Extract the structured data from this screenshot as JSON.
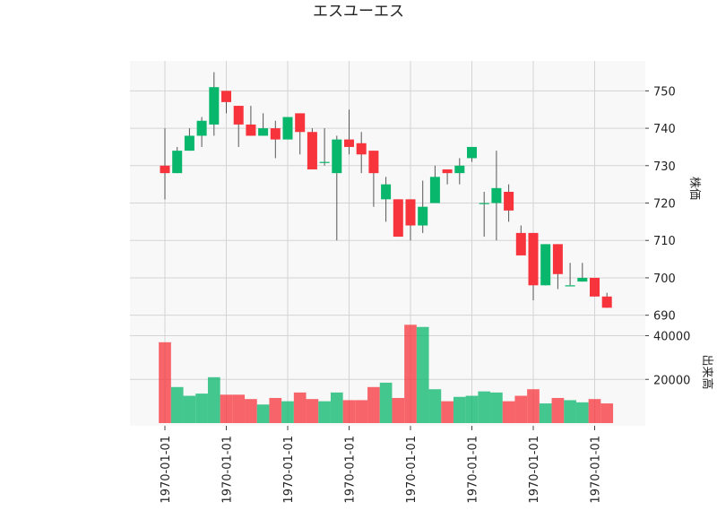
{
  "chart_data": {
    "type": "candlestick",
    "title": "エスユーエス",
    "ylabel_price": "株価",
    "ylabel_volume": "出来高",
    "up_color": "#08b76b",
    "down_color": "#f7343c",
    "wick_color": "#555555",
    "background": "#f8f8f8",
    "grid": true,
    "price_ylim": [
      688,
      758
    ],
    "price_ticks": [
      690,
      700,
      710,
      720,
      730,
      740,
      750
    ],
    "volume_ylim": [
      0,
      48000
    ],
    "volume_ticks": [
      20000,
      40000
    ],
    "x_tick_labels": [
      "1970-01-01",
      "1970-01-01",
      "1970-01-01",
      "1970-01-01",
      "1970-01-01",
      "1970-01-01",
      "1970-01-01",
      "1970-01-01"
    ],
    "x_tick_indices": [
      0,
      5,
      10,
      15,
      20,
      25,
      30,
      35
    ],
    "candles": [
      {
        "o": 730,
        "h": 740,
        "l": 721,
        "c": 728,
        "v": 37000
      },
      {
        "o": 728,
        "h": 735,
        "l": 728,
        "c": 734,
        "v": 16500
      },
      {
        "o": 734,
        "h": 740,
        "l": 734,
        "c": 738,
        "v": 12500
      },
      {
        "o": 738,
        "h": 743,
        "l": 735,
        "c": 742,
        "v": 13500
      },
      {
        "o": 741,
        "h": 755,
        "l": 738,
        "c": 751,
        "v": 21000
      },
      {
        "o": 750,
        "h": 750,
        "l": 744,
        "c": 747,
        "v": 13000
      },
      {
        "o": 746,
        "h": 746,
        "l": 735,
        "c": 741,
        "v": 13000
      },
      {
        "o": 741,
        "h": 746,
        "l": 738,
        "c": 738,
        "v": 11000
      },
      {
        "o": 738,
        "h": 744,
        "l": 738,
        "c": 740,
        "v": 8500
      },
      {
        "o": 740,
        "h": 742,
        "l": 732,
        "c": 737,
        "v": 11500
      },
      {
        "o": 737,
        "h": 743,
        "l": 737,
        "c": 743,
        "v": 10000
      },
      {
        "o": 744,
        "h": 744,
        "l": 733,
        "c": 739,
        "v": 14000
      },
      {
        "o": 739,
        "h": 740,
        "l": 729,
        "c": 729,
        "v": 11000
      },
      {
        "o": 731,
        "h": 740,
        "l": 730,
        "c": 731,
        "v": 10000
      },
      {
        "o": 728,
        "h": 738,
        "l": 710,
        "c": 737,
        "v": 14000
      },
      {
        "o": 737,
        "h": 745,
        "l": 733,
        "c": 735,
        "v": 10500
      },
      {
        "o": 736,
        "h": 739,
        "l": 728,
        "c": 733,
        "v": 10500
      },
      {
        "o": 734,
        "h": 734,
        "l": 719,
        "c": 728,
        "v": 16500
      },
      {
        "o": 721,
        "h": 727,
        "l": 715,
        "c": 725,
        "v": 18500
      },
      {
        "o": 721,
        "h": 721,
        "l": 711,
        "c": 711,
        "v": 11500
      },
      {
        "o": 721,
        "h": 721,
        "l": 710,
        "c": 714,
        "v": 45000
      },
      {
        "o": 714,
        "h": 726,
        "l": 712,
        "c": 719,
        "v": 44000
      },
      {
        "o": 720,
        "h": 730,
        "l": 720,
        "c": 727,
        "v": 15500
      },
      {
        "o": 729,
        "h": 729,
        "l": 725,
        "c": 728,
        "v": 10000
      },
      {
        "o": 728,
        "h": 732,
        "l": 725,
        "c": 730,
        "v": 12000
      },
      {
        "o": 732,
        "h": 735,
        "l": 731,
        "c": 735,
        "v": 12500
      },
      {
        "o": 720,
        "h": 723,
        "l": 711,
        "c": 720,
        "v": 14500
      },
      {
        "o": 720,
        "h": 734,
        "l": 710,
        "c": 724,
        "v": 14000
      },
      {
        "o": 723,
        "h": 725,
        "l": 715,
        "c": 718,
        "v": 10000
      },
      {
        "o": 712,
        "h": 714,
        "l": 706,
        "c": 706,
        "v": 12500
      },
      {
        "o": 712,
        "h": 712,
        "l": 694,
        "c": 698,
        "v": 15500
      },
      {
        "o": 698,
        "h": 709,
        "l": 698,
        "c": 709,
        "v": 9000
      },
      {
        "o": 709,
        "h": 709,
        "l": 697,
        "c": 701,
        "v": 11500
      },
      {
        "o": 698,
        "h": 704,
        "l": 698,
        "c": 698,
        "v": 10500
      },
      {
        "o": 699,
        "h": 704,
        "l": 699,
        "c": 700,
        "v": 9500
      },
      {
        "o": 700,
        "h": 700,
        "l": 695,
        "c": 695,
        "v": 11000
      },
      {
        "o": 695,
        "h": 696,
        "l": 692,
        "c": 692,
        "v": 9000
      }
    ]
  }
}
